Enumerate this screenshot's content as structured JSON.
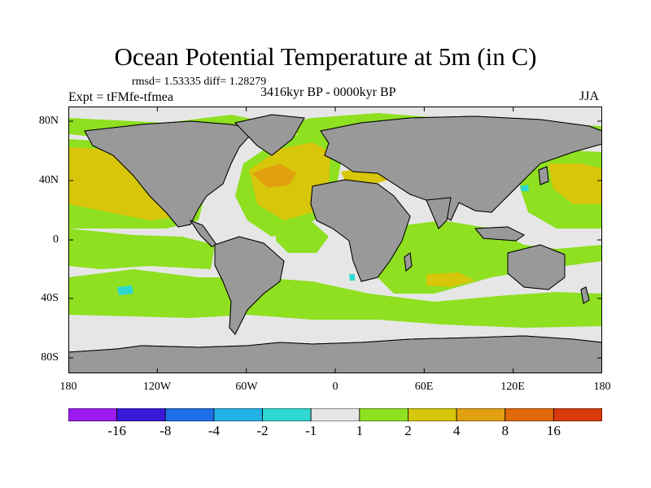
{
  "title": "Ocean Potential Temperature at 5m (in C)",
  "stats": "rmsd= 1.53335 diff= 1.28279",
  "experiment": "Expt = tFMfe-tfmea",
  "period": "3416kyr BP - 0000kyr BP",
  "season": "JJA",
  "lat_labels": [
    "80N",
    "40N",
    "0",
    "40S",
    "80S"
  ],
  "lon_labels": [
    "180",
    "120W",
    "60W",
    "0",
    "60E",
    "120E",
    "180"
  ],
  "colorbar": {
    "colors": [
      "#9b1bf0",
      "#3a18d8",
      "#1f6fe8",
      "#22b2e6",
      "#2ed8d0",
      "#e6e6e6",
      "#8ee020",
      "#d7c60a",
      "#e1a010",
      "#e06a08",
      "#d83a0c"
    ],
    "labels": [
      "-16",
      "-8",
      "-4",
      "-2",
      "-1",
      "1",
      "2",
      "4",
      "8",
      "16"
    ]
  },
  "colors": {
    "land": "#999999",
    "no_change": "#e6e6e6",
    "warm_1_2": "#8ee020",
    "warm_2_4": "#d7c60a",
    "warm_4_8": "#e1a010",
    "cool_neg": "#2ed8d0"
  }
}
